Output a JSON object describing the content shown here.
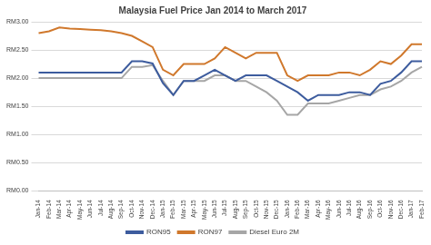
{
  "chart_data": {
    "type": "line",
    "title": "Malaysia Fuel Price Jan 2014 to March 2017",
    "categories": [
      "Jan-14",
      "Feb-14",
      "Mar-14",
      "Apr-14",
      "May-14",
      "Jun-14",
      "Jul-14",
      "Aug-14",
      "Sep-14",
      "Oct-14",
      "Nov-14",
      "Dec-14",
      "Jan-15",
      "Feb-15",
      "Mar-15",
      "Apr-15",
      "May-15",
      "Jun-15",
      "Jul-15",
      "Aug-15",
      "Sep-15",
      "Oct-15",
      "Nov-15",
      "Dec-15",
      "Jan-16",
      "Feb-16",
      "Mar-16",
      "Apr-16",
      "May-16",
      "Jun-16",
      "Jul-16",
      "Aug-16",
      "Sep-16",
      "Oct-16",
      "Nov-16",
      "Dec-16",
      "Jan-17",
      "Feb-17"
    ],
    "series": [
      {
        "name": "RON95",
        "color": "#3d5c9e",
        "values": [
          2.1,
          2.1,
          2.1,
          2.1,
          2.1,
          2.1,
          2.1,
          2.1,
          2.1,
          2.3,
          2.3,
          2.26,
          1.91,
          1.7,
          1.95,
          1.95,
          2.05,
          2.15,
          2.05,
          1.95,
          2.05,
          2.05,
          2.05,
          1.95,
          1.85,
          1.75,
          1.6,
          1.7,
          1.7,
          1.7,
          1.75,
          1.75,
          1.7,
          1.9,
          1.95,
          2.1,
          2.3,
          2.3
        ]
      },
      {
        "name": "RON97",
        "color": "#d0782c",
        "values": [
          2.8,
          2.83,
          2.9,
          2.88,
          2.87,
          2.86,
          2.85,
          2.83,
          2.8,
          2.75,
          2.65,
          2.55,
          2.15,
          2.05,
          2.25,
          2.25,
          2.25,
          2.35,
          2.55,
          2.45,
          2.35,
          2.45,
          2.45,
          2.45,
          2.05,
          1.95,
          2.05,
          2.05,
          2.05,
          2.1,
          2.1,
          2.05,
          2.15,
          2.3,
          2.25,
          2.4,
          2.6,
          2.6
        ]
      },
      {
        "name": "Diesel Euro 2M",
        "color": "#a6a6a6",
        "values": [
          2.0,
          2.0,
          2.0,
          2.0,
          2.0,
          2.0,
          2.0,
          2.0,
          2.0,
          2.2,
          2.2,
          2.23,
          1.95,
          1.7,
          1.95,
          1.95,
          1.95,
          2.05,
          2.05,
          1.95,
          1.95,
          1.85,
          1.75,
          1.6,
          1.35,
          1.35,
          1.55,
          1.55,
          1.55,
          1.6,
          1.65,
          1.7,
          1.7,
          1.8,
          1.85,
          1.95,
          2.1,
          2.2
        ]
      }
    ],
    "ylim": [
      0,
      3
    ],
    "yticks": [
      {
        "value": 0,
        "label": "RM0.00"
      },
      {
        "value": 0.5,
        "label": "RM0.50"
      },
      {
        "value": 1,
        "label": "RM1.00"
      },
      {
        "value": 1.5,
        "label": "RM1.50"
      },
      {
        "value": 2,
        "label": "RM2.00"
      },
      {
        "value": 2.5,
        "label": "RM2.50"
      },
      {
        "value": 3,
        "label": "RM3.00"
      }
    ],
    "grid": true,
    "legend": "bottom"
  }
}
